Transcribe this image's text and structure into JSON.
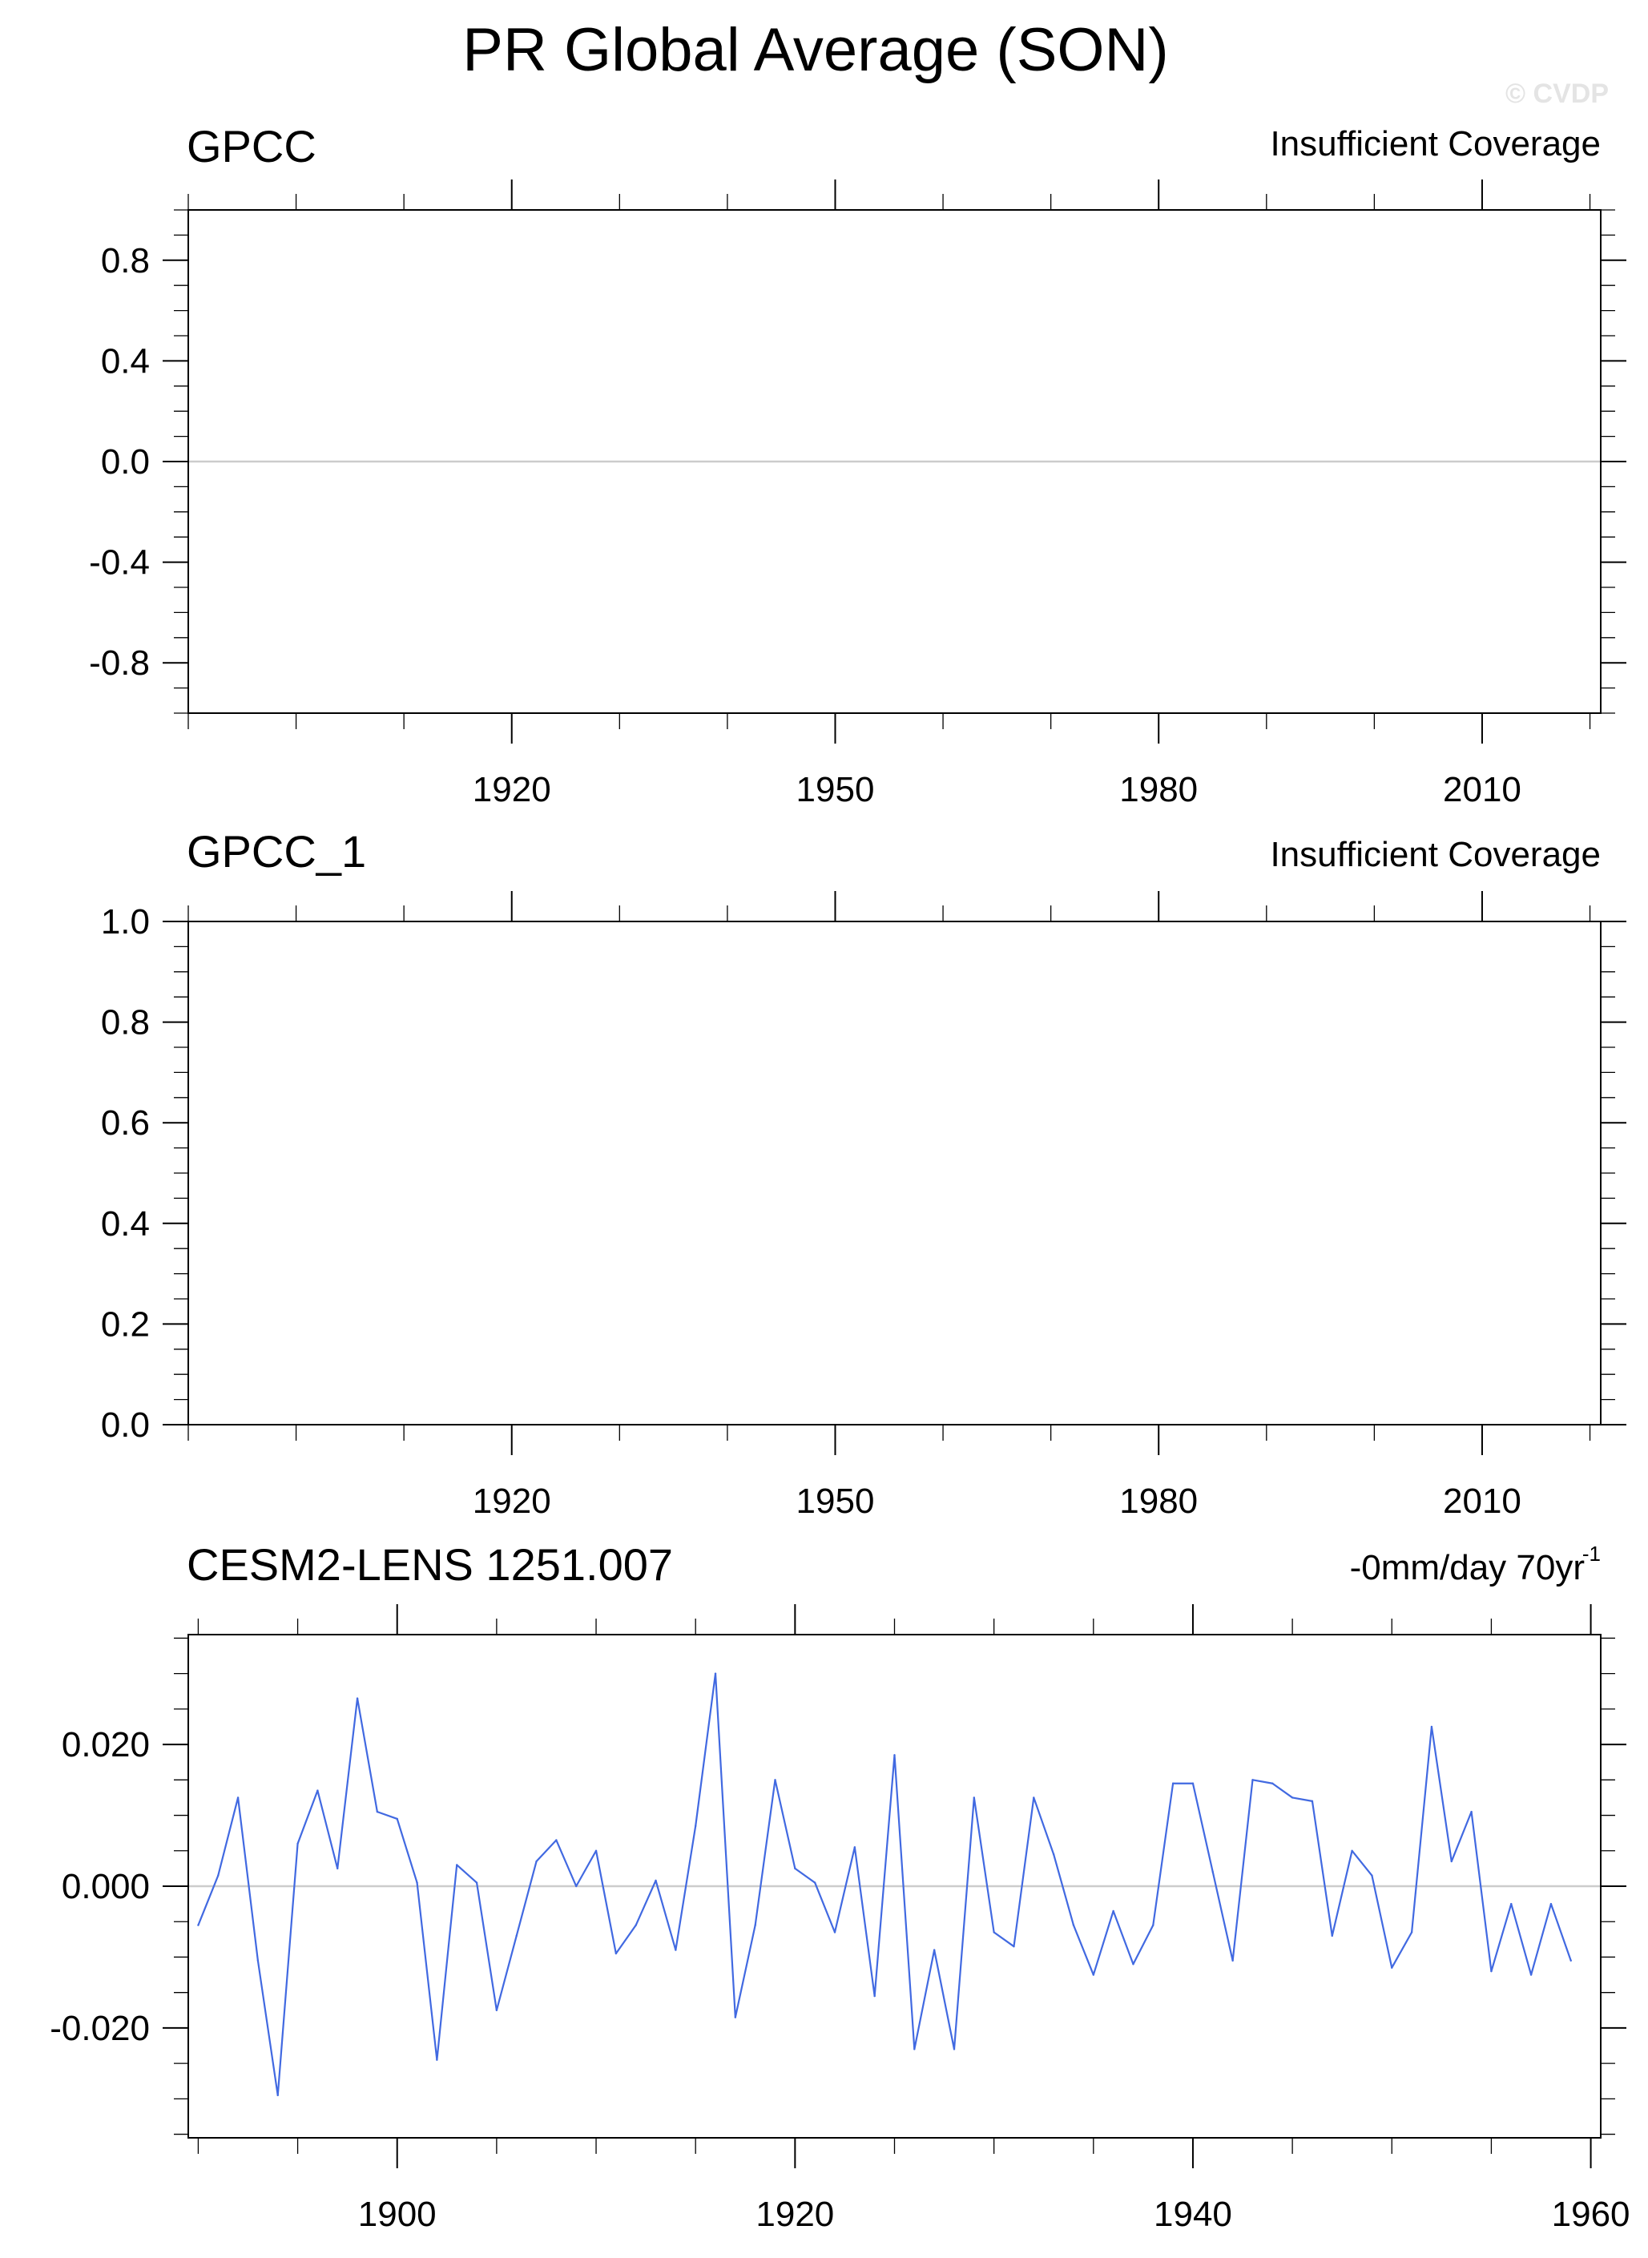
{
  "figure": {
    "title": "PR Global Average (SON)",
    "watermark": "© CVDP"
  },
  "chart_data": [
    {
      "type": "line",
      "title": "GPCC",
      "right_title": "Insufficient Coverage",
      "x": [],
      "y": [],
      "xlim": [
        1890,
        2021
      ],
      "ylim": [
        -1.0,
        1.0
      ],
      "x_major_ticks": [
        1920,
        1950,
        1980,
        2010
      ],
      "x_tick_labels": [
        "1920",
        "1950",
        "1980",
        "2010"
      ],
      "x_minor_ticks": [
        1890,
        1900,
        1910,
        1930,
        1940,
        1960,
        1970,
        1990,
        2000,
        2020
      ],
      "y_major_ticks": [
        0.8,
        0.4,
        0.0,
        -0.4,
        -0.8
      ],
      "y_tick_labels": [
        "0.8",
        "0.4",
        "0.0",
        "-0.4",
        "-0.8"
      ],
      "y_minor_step": 0.1,
      "zero_line": true
    },
    {
      "type": "line",
      "title": "GPCC_1",
      "right_title": "Insufficient Coverage",
      "x": [],
      "y": [],
      "xlim": [
        1890,
        2021
      ],
      "ylim": [
        0.0,
        1.0
      ],
      "x_major_ticks": [
        1920,
        1950,
        1980,
        2010
      ],
      "x_tick_labels": [
        "1920",
        "1950",
        "1980",
        "2010"
      ],
      "x_minor_ticks": [
        1890,
        1900,
        1910,
        1930,
        1940,
        1960,
        1970,
        1990,
        2000,
        2020
      ],
      "y_major_ticks": [
        1.0,
        0.8,
        0.6,
        0.4,
        0.2,
        0.0
      ],
      "y_tick_labels": [
        "1.0",
        "0.8",
        "0.6",
        "0.4",
        "0.2",
        "0.0"
      ],
      "y_minor_step": 0.05,
      "zero_line": false
    },
    {
      "type": "line",
      "title": "CESM2-LENS 1251.007",
      "right_title": "-0mm/day 70yr",
      "right_title_sup": "-1",
      "series_color": "#4169e1",
      "x": [
        1890,
        1891,
        1892,
        1893,
        1894,
        1895,
        1896,
        1897,
        1898,
        1899,
        1900,
        1901,
        1902,
        1903,
        1904,
        1905,
        1906,
        1907,
        1908,
        1909,
        1910,
        1911,
        1912,
        1913,
        1914,
        1915,
        1916,
        1917,
        1918,
        1919,
        1920,
        1921,
        1922,
        1923,
        1924,
        1925,
        1926,
        1927,
        1928,
        1929,
        1930,
        1931,
        1932,
        1933,
        1934,
        1935,
        1936,
        1937,
        1938,
        1939,
        1940,
        1941,
        1942,
        1943,
        1944,
        1945,
        1946,
        1947,
        1948,
        1949,
        1950,
        1951,
        1952,
        1953,
        1954,
        1955,
        1956,
        1957,
        1958,
        1959,
        1960
      ],
      "y": [
        -0.0055,
        0.0015,
        0.0125,
        -0.0105,
        -0.0295,
        0.006,
        0.0135,
        0.0025,
        0.0265,
        0.0105,
        0.0095,
        0.0005,
        -0.0245,
        0.003,
        0.0005,
        -0.0175,
        -0.007,
        0.0035,
        0.0065,
        0.0,
        0.005,
        -0.0095,
        -0.0055,
        0.0008,
        -0.009,
        0.0085,
        0.03,
        -0.0185,
        -0.0055,
        0.015,
        0.0025,
        0.0005,
        -0.0065,
        0.0055,
        -0.0155,
        0.0185,
        -0.023,
        -0.009,
        -0.023,
        0.0125,
        -0.0065,
        -0.0085,
        0.0125,
        0.0045,
        -0.0055,
        -0.0125,
        -0.0035,
        -0.011,
        -0.0055,
        0.0145,
        0.0145,
        0.002,
        -0.0105,
        0.015,
        0.0145,
        0.0125,
        0.012,
        -0.007,
        0.005,
        0.0015,
        -0.0115,
        -0.0065,
        0.0225,
        0.0035,
        0.0105,
        -0.012,
        -0.0025,
        -0.0125,
        -0.0025,
        -0.0105,
        null
      ],
      "xlim": [
        1889.5,
        1960.5
      ],
      "ylim": [
        -0.0355,
        0.0355
      ],
      "x_major_ticks": [
        1900,
        1920,
        1940,
        1960
      ],
      "x_tick_labels": [
        "1900",
        "1920",
        "1940",
        "1960"
      ],
      "x_minor_ticks": [
        1890,
        1895,
        1905,
        1910,
        1915,
        1925,
        1930,
        1935,
        1945,
        1950,
        1955
      ],
      "y_major_ticks": [
        0.02,
        0.0,
        -0.02
      ],
      "y_tick_labels": [
        "0.020",
        "0.000",
        "-0.020"
      ],
      "y_minor_step": 0.005,
      "zero_line": true
    }
  ]
}
